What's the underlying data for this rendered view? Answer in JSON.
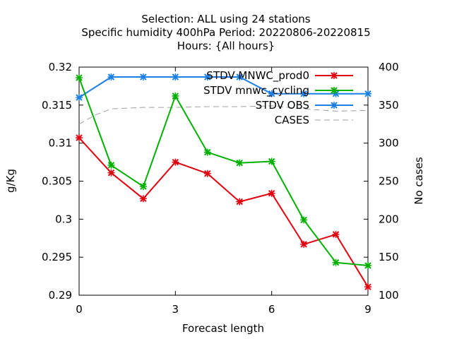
{
  "chart_data": {
    "type": "line",
    "title_lines": [
      "Selection: ALL using    24 stations",
      "Specific humidity 400hPa   Period: 20220806-20220815",
      "Hours: {All hours}"
    ],
    "xlabel": "Forecast length",
    "ylabel": "g/Kg",
    "y2label": "No cases",
    "xlim": [
      0,
      9
    ],
    "ylim": [
      0.29,
      0.32
    ],
    "y2lim": [
      100,
      400
    ],
    "xticks": [
      0,
      3,
      6,
      9
    ],
    "xtick_labels": [
      "0",
      "3",
      "6",
      "9"
    ],
    "yticks": [
      0.29,
      0.295,
      0.3,
      0.305,
      0.31,
      0.315,
      0.32
    ],
    "ytick_labels": [
      "0.29",
      "0.295",
      "0.3",
      "0.305",
      "0.31",
      "0.315",
      "0.32"
    ],
    "y2ticks": [
      100,
      150,
      200,
      250,
      300,
      350,
      400
    ],
    "y2tick_labels": [
      "100",
      "150",
      "200",
      "250",
      "300",
      "350",
      "400"
    ],
    "grid": false,
    "legend_position": "top-right",
    "x": [
      0,
      1,
      2,
      3,
      4,
      5,
      6,
      7,
      8,
      9
    ],
    "series": [
      {
        "name": "STDV MNWC_prod0",
        "color": "#e0000f",
        "axis": "y",
        "marker": "x",
        "values": [
          0.3107,
          0.3061,
          0.3027,
          0.3075,
          0.306,
          0.3023,
          0.3034,
          0.2967,
          0.298,
          0.2911
        ]
      },
      {
        "name": "STDV mnwc_cycling",
        "color": "#00b000",
        "axis": "y",
        "marker": "x",
        "values": [
          0.3186,
          0.3071,
          0.3043,
          0.3162,
          0.3088,
          0.3074,
          0.3076,
          0.2999,
          0.2943,
          0.2939
        ]
      },
      {
        "name": "STDV OBS",
        "color": "#1a80e6",
        "axis": "y",
        "marker": "x",
        "values": [
          0.316,
          0.3187,
          0.3187,
          0.3187,
          0.3187,
          0.3187,
          0.3165,
          0.3165,
          0.3165,
          0.3165
        ]
      },
      {
        "name": "CASES",
        "color": "#a0a0a0",
        "axis": "y2",
        "marker": "none",
        "dashed": true,
        "x": [
          0,
          0.5,
          1,
          1.5,
          2,
          3,
          4,
          5,
          6,
          7,
          8,
          9
        ],
        "values": [
          325,
          337,
          345,
          346,
          347,
          347,
          348,
          348,
          349,
          345,
          342,
          343
        ]
      }
    ]
  }
}
